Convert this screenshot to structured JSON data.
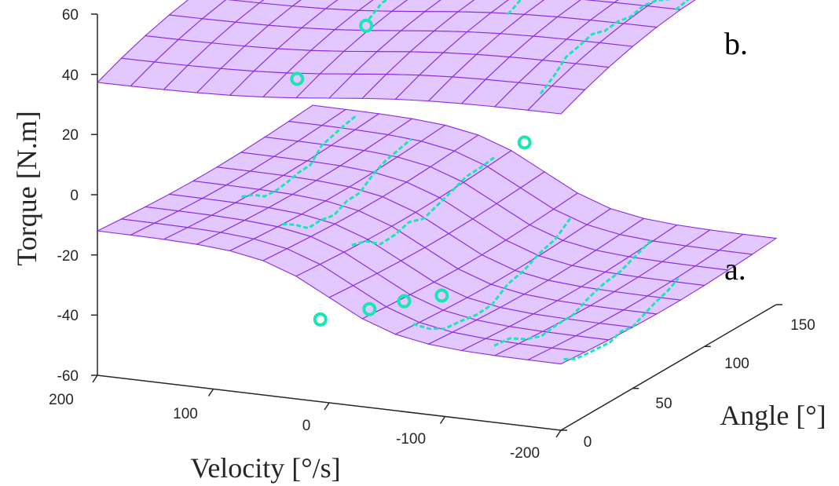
{
  "chart_data": {
    "type": "surface3d",
    "xlabel": "Velocity [°/s]",
    "ylabel": "Angle [°]",
    "zlabel": "Torque [N.m]",
    "xlim": [
      -200,
      200
    ],
    "ylim": [
      0,
      150
    ],
    "zlim": [
      -60,
      60
    ],
    "xticks": [
      "200",
      "100",
      "0",
      "-100",
      "-200"
    ],
    "yticks": [
      "0",
      "50",
      "100",
      "150"
    ],
    "zticks": [
      "60",
      "40",
      "20",
      "0",
      "-20",
      "-40",
      "-60"
    ],
    "surface_color": "#8a2be2",
    "surface_fill": "#e3c8ff",
    "measure_color": "#19e6b4",
    "surfaces": [
      {
        "label": "a.",
        "torque_range": [
          -44,
          -10
        ]
      },
      {
        "label": "b.",
        "torque_range": [
          32,
          58
        ]
      }
    ]
  }
}
